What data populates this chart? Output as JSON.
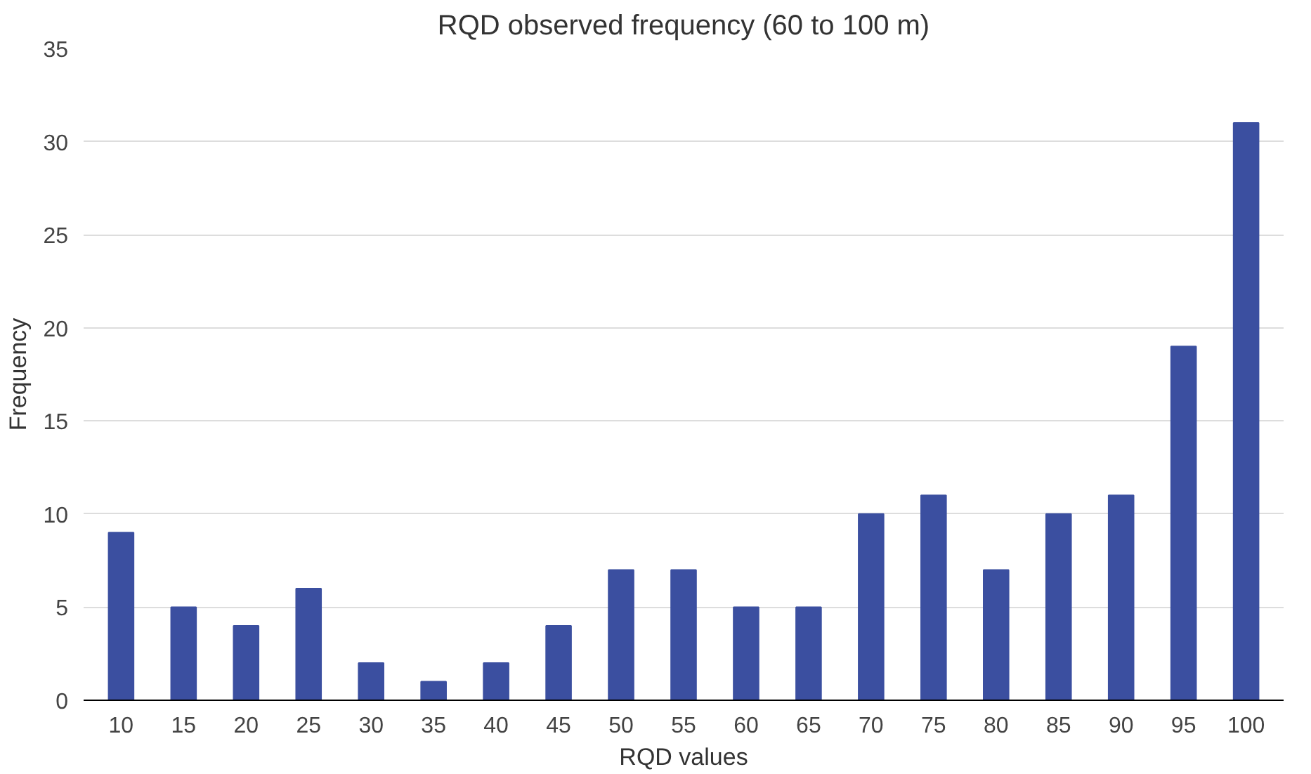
{
  "chart_data": {
    "type": "bar",
    "title": "RQD observed frequency (60 to 100 m)",
    "xlabel": "RQD values",
    "ylabel": "Frequency",
    "categories": [
      "10",
      "15",
      "20",
      "25",
      "30",
      "35",
      "40",
      "45",
      "50",
      "55",
      "60",
      "65",
      "70",
      "75",
      "80",
      "85",
      "90",
      "95",
      "100"
    ],
    "values": [
      9,
      5,
      4,
      6,
      2,
      1,
      2,
      4,
      7,
      7,
      5,
      5,
      10,
      11,
      7,
      10,
      11,
      19,
      31
    ],
    "color": "#3b4fa0",
    "ylim": [
      0,
      35
    ],
    "yticks": [
      0,
      5,
      10,
      15,
      20,
      25,
      30,
      35
    ],
    "grid": "y"
  }
}
